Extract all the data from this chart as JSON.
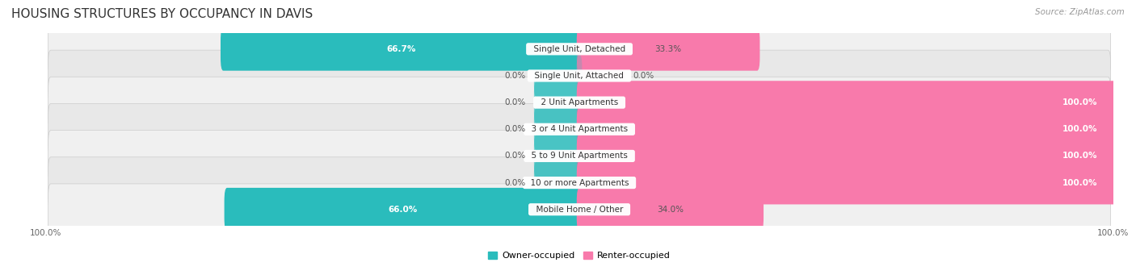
{
  "title": "HOUSING STRUCTURES BY OCCUPANCY IN DAVIS",
  "source": "Source: ZipAtlas.com",
  "categories": [
    "Single Unit, Detached",
    "Single Unit, Attached",
    "2 Unit Apartments",
    "3 or 4 Unit Apartments",
    "5 to 9 Unit Apartments",
    "10 or more Apartments",
    "Mobile Home / Other"
  ],
  "owner_pct": [
    66.7,
    0.0,
    0.0,
    0.0,
    0.0,
    0.0,
    66.0
  ],
  "renter_pct": [
    33.3,
    0.0,
    100.0,
    100.0,
    100.0,
    100.0,
    34.0
  ],
  "owner_color": "#2abcbc",
  "renter_color": "#f87aab",
  "row_bg_even": "#f0f0f0",
  "row_bg_odd": "#e8e8e8",
  "title_fontsize": 11,
  "label_fontsize": 7.5,
  "tick_fontsize": 7.5,
  "source_fontsize": 7.5,
  "legend_fontsize": 8,
  "owner_label_0pct_color": "#555555",
  "pct_label_inside_color": "white",
  "pct_label_outside_color": "#555555"
}
